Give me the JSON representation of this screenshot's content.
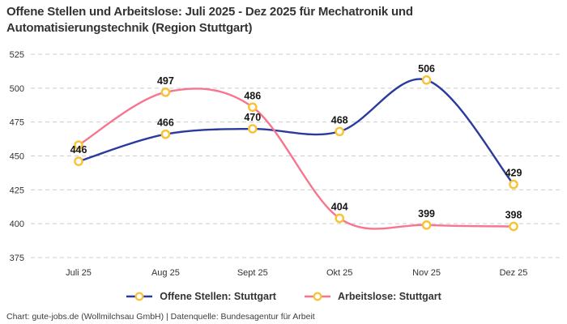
{
  "chart_data": {
    "type": "line",
    "title": "Offene Stellen und Arbeitslose: Juli 2025 - Dez 2025 für Mechatronik und Automatisierungstechnik (Region Stuttgart)",
    "categories": [
      "Juli 25",
      "Aug 25",
      "Sept 25",
      "Okt 25",
      "Nov 25",
      "Dez 25"
    ],
    "series": [
      {
        "name": "Offene Stellen: Stuttgart",
        "color": "#2b3a9d",
        "values": [
          446,
          466,
          470,
          468,
          506,
          429
        ],
        "data_labels": [
          "446",
          "466",
          "470",
          "468",
          "506",
          "429"
        ]
      },
      {
        "name": "Arbeitslose: Stuttgart",
        "color": "#f7758e",
        "values": [
          458,
          497,
          486,
          404,
          399,
          398
        ],
        "data_labels": [
          "",
          "497",
          "486",
          "404",
          "399",
          "398"
        ]
      }
    ],
    "ylim": [
      375,
      525
    ],
    "yticks": [
      375,
      400,
      425,
      450,
      475,
      500,
      525
    ],
    "grid": "horizontal-dashed",
    "grid_color": "#cccccc",
    "marker_shape": "circle",
    "marker_color": "#f9c233",
    "marker_fill": "#ffffff",
    "legend_position": "bottom"
  },
  "footer": "Chart: gute-jobs.de (Wollmilchsau GmbH) | Datenquelle: Bundesagentur für Arbeit"
}
